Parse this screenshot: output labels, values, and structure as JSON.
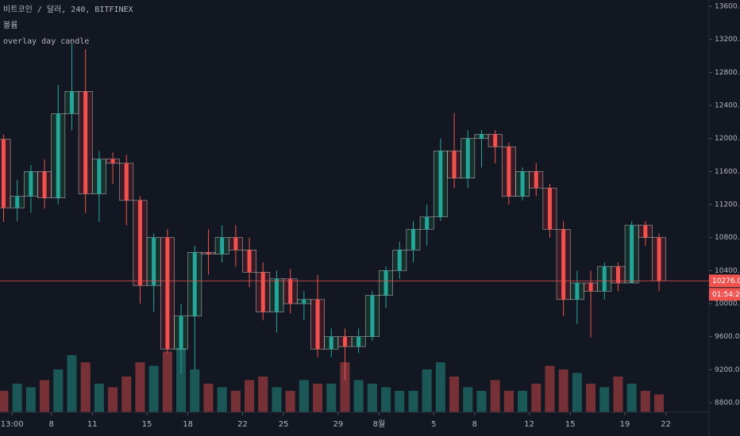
{
  "header": {
    "title": "비트코인 / 달러, 240, BITFINEX",
    "volume_label": "볼륨",
    "indicator": "overlay day candle"
  },
  "chart_data": {
    "type": "candlestick",
    "x": [
      -1,
      0,
      1,
      2,
      3,
      4,
      5,
      6,
      7,
      8,
      9,
      10,
      11,
      12,
      13,
      14,
      15,
      16,
      17,
      18,
      19,
      20,
      21,
      22,
      23,
      24,
      25,
      26,
      27,
      28,
      29,
      30,
      31,
      32,
      33,
      34,
      35,
      36,
      37,
      38,
      39,
      40,
      41,
      42,
      43,
      44,
      45,
      46,
      47
    ],
    "open": [
      11990,
      11160,
      11300,
      11600,
      11280,
      12300,
      12570,
      11330,
      11750,
      11700,
      11250,
      10220,
      10800,
      9450,
      9850,
      10620,
      10600,
      10800,
      10650,
      10380,
      9900,
      10300,
      10000,
      10050,
      9450,
      9600,
      9480,
      9600,
      10100,
      10400,
      10650,
      10900,
      11050,
      11850,
      11520,
      12000,
      12050,
      11900,
      11300,
      11600,
      11400,
      10900,
      10050,
      10250,
      10150,
      10450,
      10250,
      10950,
      10800
    ],
    "high": [
      12050,
      11500,
      11680,
      11750,
      12650,
      13150,
      13080,
      11850,
      11830,
      11800,
      11300,
      10850,
      10900,
      10000,
      10700,
      10900,
      10950,
      10950,
      10800,
      10500,
      10400,
      10420,
      10150,
      10350,
      9700,
      9700,
      9700,
      10150,
      10450,
      10750,
      11000,
      11200,
      12000,
      12310,
      12100,
      12100,
      12100,
      11950,
      11650,
      11700,
      11450,
      11000,
      10400,
      10400,
      10500,
      10500,
      11000,
      11000,
      10850
    ],
    "low": [
      10990,
      11000,
      11100,
      11150,
      11200,
      12100,
      11100,
      10990,
      11450,
      10950,
      10000,
      9900,
      9400,
      9150,
      9200,
      10350,
      10500,
      10450,
      10200,
      9800,
      9650,
      9880,
      9800,
      9350,
      9350,
      9070,
      9400,
      9550,
      9950,
      10300,
      10500,
      10700,
      11000,
      11400,
      11400,
      11650,
      11700,
      11200,
      11250,
      11300,
      10800,
      9850,
      9750,
      9590,
      10050,
      10150,
      10250,
      10700,
      10150
    ],
    "close": [
      11160,
      11300,
      11600,
      11280,
      12300,
      12570,
      11330,
      11750,
      11700,
      11250,
      10220,
      10800,
      9450,
      9850,
      10620,
      10600,
      10800,
      10650,
      10380,
      9900,
      10300,
      10000,
      10050,
      9450,
      9600,
      9480,
      9600,
      10100,
      10400,
      10650,
      10900,
      11050,
      11850,
      11520,
      12000,
      12050,
      11900,
      11300,
      11600,
      11400,
      10900,
      10050,
      10250,
      10150,
      10450,
      10250,
      10950,
      10800,
      10276
    ],
    "volume": [
      30,
      40,
      35,
      45,
      60,
      80,
      70,
      40,
      35,
      50,
      70,
      65,
      85,
      90,
      60,
      40,
      35,
      30,
      45,
      50,
      35,
      30,
      45,
      40,
      40,
      70,
      45,
      40,
      35,
      30,
      30,
      60,
      70,
      50,
      35,
      30,
      45,
      30,
      30,
      40,
      65,
      60,
      55,
      40,
      35,
      50,
      40,
      30,
      25
    ],
    "xlim": [
      -0.76,
      51.16
    ],
    "xticks": [
      {
        "value": 0.125,
        "label": "13:00"
      },
      {
        "value": 3,
        "label": "8"
      },
      {
        "value": 6,
        "label": "11"
      },
      {
        "value": 10,
        "label": "15"
      },
      {
        "value": 13,
        "label": "18"
      },
      {
        "value": 17,
        "label": "22"
      },
      {
        "value": 20,
        "label": "25"
      },
      {
        "value": 24,
        "label": "29"
      },
      {
        "value": 27,
        "label": "8월"
      },
      {
        "value": 31,
        "label": "5"
      },
      {
        "value": 34,
        "label": "8"
      },
      {
        "value": 38,
        "label": "12"
      },
      {
        "value": 41,
        "label": "15"
      },
      {
        "value": 45,
        "label": "19"
      },
      {
        "value": 48,
        "label": "22"
      }
    ],
    "ylim": [
      8685,
      13677
    ],
    "yticks": [
      {
        "value": 8800,
        "label": "8800.0"
      },
      {
        "value": 9200,
        "label": "9200.0"
      },
      {
        "value": 9600,
        "label": "9600.0"
      },
      {
        "value": 10000,
        "label": "10000.0"
      },
      {
        "value": 10400,
        "label": "10400.0"
      },
      {
        "value": 10800,
        "label": "10800.0"
      },
      {
        "value": 11200,
        "label": "11200.0"
      },
      {
        "value": 11600,
        "label": "11600.0"
      },
      {
        "value": 12000,
        "label": "12000.0"
      },
      {
        "value": 12400,
        "label": "12400.0"
      },
      {
        "value": 12800,
        "label": "12800.0"
      },
      {
        "value": 13200,
        "label": "13200.0"
      },
      {
        "value": 13600,
        "label": "13600.0"
      }
    ],
    "last_price": {
      "value": 10276,
      "label": "10276.0"
    },
    "countdown": "01:54:22",
    "up_color": "#26a69a",
    "down_color": "#ef5350"
  }
}
